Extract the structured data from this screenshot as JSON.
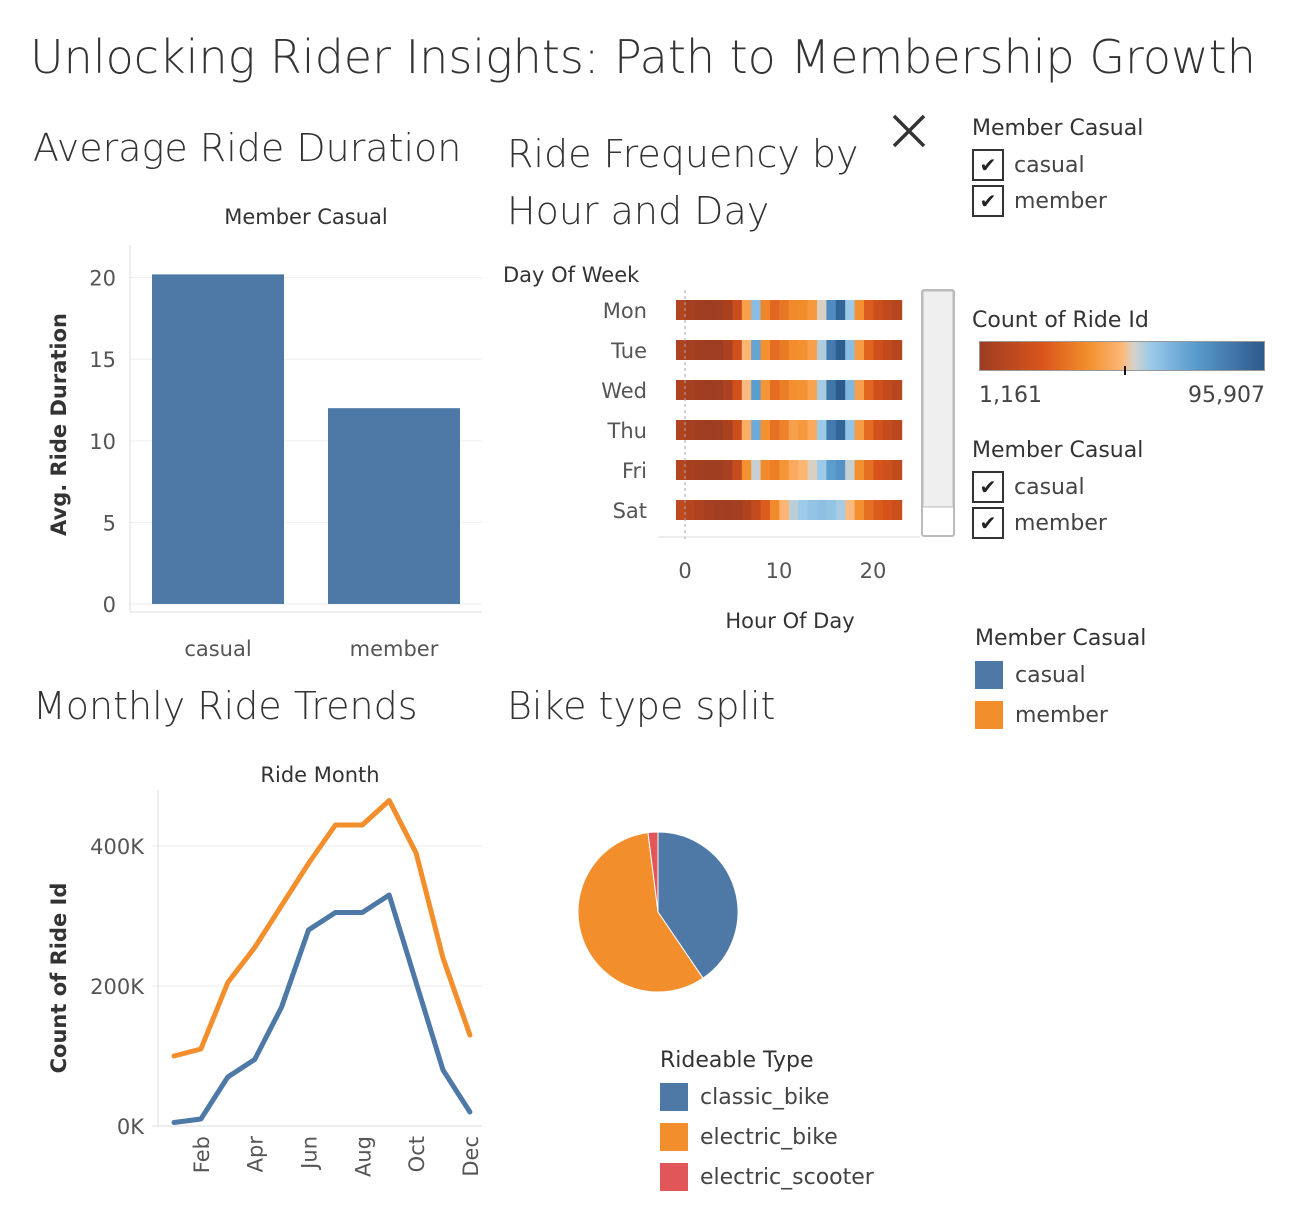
{
  "title": "Unlocking Rider Insights: Path to Membership Growth",
  "colors": {
    "casual": "#4e79a7",
    "member": "#f28e2b",
    "scooter": "#e15759",
    "grid": "#eeeeee",
    "axis": "#dddddd",
    "text": "#555555"
  },
  "icons": {
    "close": "close-icon",
    "check": "check-icon"
  },
  "filter_top": {
    "header": "Member Casual",
    "items": [
      {
        "label": "casual",
        "checked": true,
        "mark": "✔"
      },
      {
        "label": "member",
        "checked": true,
        "mark": "✔"
      }
    ]
  },
  "filter_mid": {
    "header": "Member Casual",
    "items": [
      {
        "label": "casual",
        "checked": true,
        "mark": "✔"
      },
      {
        "label": "member",
        "checked": true,
        "mark": "✔"
      }
    ]
  },
  "color_legend": {
    "header": "Count of Ride Id",
    "min_label": "1,161",
    "max_label": "95,907"
  },
  "member_legend": {
    "header": "Member Casual",
    "items": [
      {
        "label": "casual",
        "color": "#4e79a7"
      },
      {
        "label": "member",
        "color": "#f28e2b"
      }
    ]
  },
  "rideable_legend": {
    "header": "Rideable Type",
    "items": [
      {
        "label": "classic_bike",
        "color": "#4e79a7"
      },
      {
        "label": "electric_bike",
        "color": "#f28e2b"
      },
      {
        "label": "electric_scooter",
        "color": "#e15759"
      }
    ]
  },
  "chart_data": [
    {
      "type": "bar",
      "title": "Average Ride Duration",
      "header": "Member Casual",
      "ylabel": "Avg. Ride Duration",
      "categories": [
        "casual",
        "member"
      ],
      "values": [
        20.2,
        12.0
      ],
      "ylim": [
        0,
        22
      ],
      "yticks": [
        "0",
        "5",
        "10",
        "15",
        "20"
      ],
      "grid": true
    },
    {
      "type": "heatmap",
      "title": "Ride Frequency by Hour and Day",
      "ylabel": "Day Of Week",
      "xlabel": "Hour Of Day",
      "rows": [
        "Mon",
        "Tue",
        "Wed",
        "Thu",
        "Fri",
        "Sat"
      ],
      "hours": [
        0,
        1,
        2,
        3,
        4,
        5,
        6,
        7,
        8,
        9,
        10,
        11,
        12,
        13,
        14,
        15,
        16,
        17,
        18,
        19,
        20,
        21,
        22,
        23
      ],
      "xticks": [
        "0",
        "10",
        "20"
      ],
      "color_range": [
        1161,
        95907
      ],
      "values": [
        [
          8000,
          4000,
          2200,
          1500,
          1800,
          5000,
          16000,
          42000,
          62000,
          35000,
          27000,
          31000,
          36000,
          37000,
          40000,
          52000,
          78000,
          92000,
          58000,
          38000,
          24000,
          17000,
          13000,
          9500
        ],
        [
          6500,
          3500,
          2000,
          1300,
          1600,
          5500,
          18000,
          48000,
          70000,
          38000,
          28000,
          32000,
          37000,
          38000,
          42000,
          56000,
          84000,
          95000,
          62000,
          41000,
          26000,
          18000,
          13500,
          9500
        ],
        [
          7000,
          3600,
          2100,
          1400,
          1700,
          5600,
          18500,
          49000,
          72000,
          39000,
          28500,
          33000,
          38000,
          38500,
          43000,
          57000,
          86000,
          95907,
          64000,
          42000,
          27000,
          18500,
          14000,
          9800
        ],
        [
          7500,
          3900,
          2300,
          1500,
          1800,
          5300,
          17000,
          46000,
          68000,
          38000,
          29000,
          34000,
          42000,
          40000,
          45000,
          58000,
          84000,
          92000,
          60000,
          41000,
          28000,
          20000,
          15000,
          11000
        ],
        [
          9000,
          5200,
          3000,
          2000,
          1900,
          4800,
          14500,
          38000,
          54000,
          36000,
          33000,
          39000,
          45000,
          48000,
          52000,
          58000,
          72000,
          76000,
          54000,
          38000,
          29000,
          22000,
          18000,
          14000
        ],
        [
          13000,
          9000,
          6500,
          4000,
          2400,
          1900,
          3200,
          7000,
          14000,
          24000,
          36000,
          48000,
          55000,
          58000,
          60000,
          61000,
          60000,
          57000,
          49000,
          38000,
          29000,
          24000,
          21000,
          17000
        ]
      ]
    },
    {
      "type": "line",
      "title": "Monthly Ride Trends",
      "header": "Ride Month",
      "ylabel": "Count of Ride Id",
      "x": [
        1,
        2,
        3,
        4,
        5,
        6,
        7,
        8,
        9,
        10,
        11,
        12
      ],
      "xticks": [
        "Feb",
        "Apr",
        "Jun",
        "Aug",
        "Oct",
        "Dec"
      ],
      "yticks": [
        "0K",
        "200K",
        "400K"
      ],
      "ylim": [
        0,
        480000
      ],
      "series": [
        {
          "name": "casual",
          "values": [
            5000,
            10000,
            70000,
            95000,
            170000,
            280000,
            305000,
            305000,
            330000,
            205000,
            80000,
            20000
          ]
        },
        {
          "name": "member",
          "values": [
            100000,
            110000,
            205000,
            255000,
            315000,
            375000,
            430000,
            430000,
            465000,
            390000,
            240000,
            130000
          ]
        }
      ]
    },
    {
      "type": "pie",
      "title": "Bike type split",
      "categories": [
        "classic_bike",
        "electric_bike",
        "electric_scooter"
      ],
      "values": [
        40.5,
        57.5,
        2.0
      ]
    }
  ]
}
